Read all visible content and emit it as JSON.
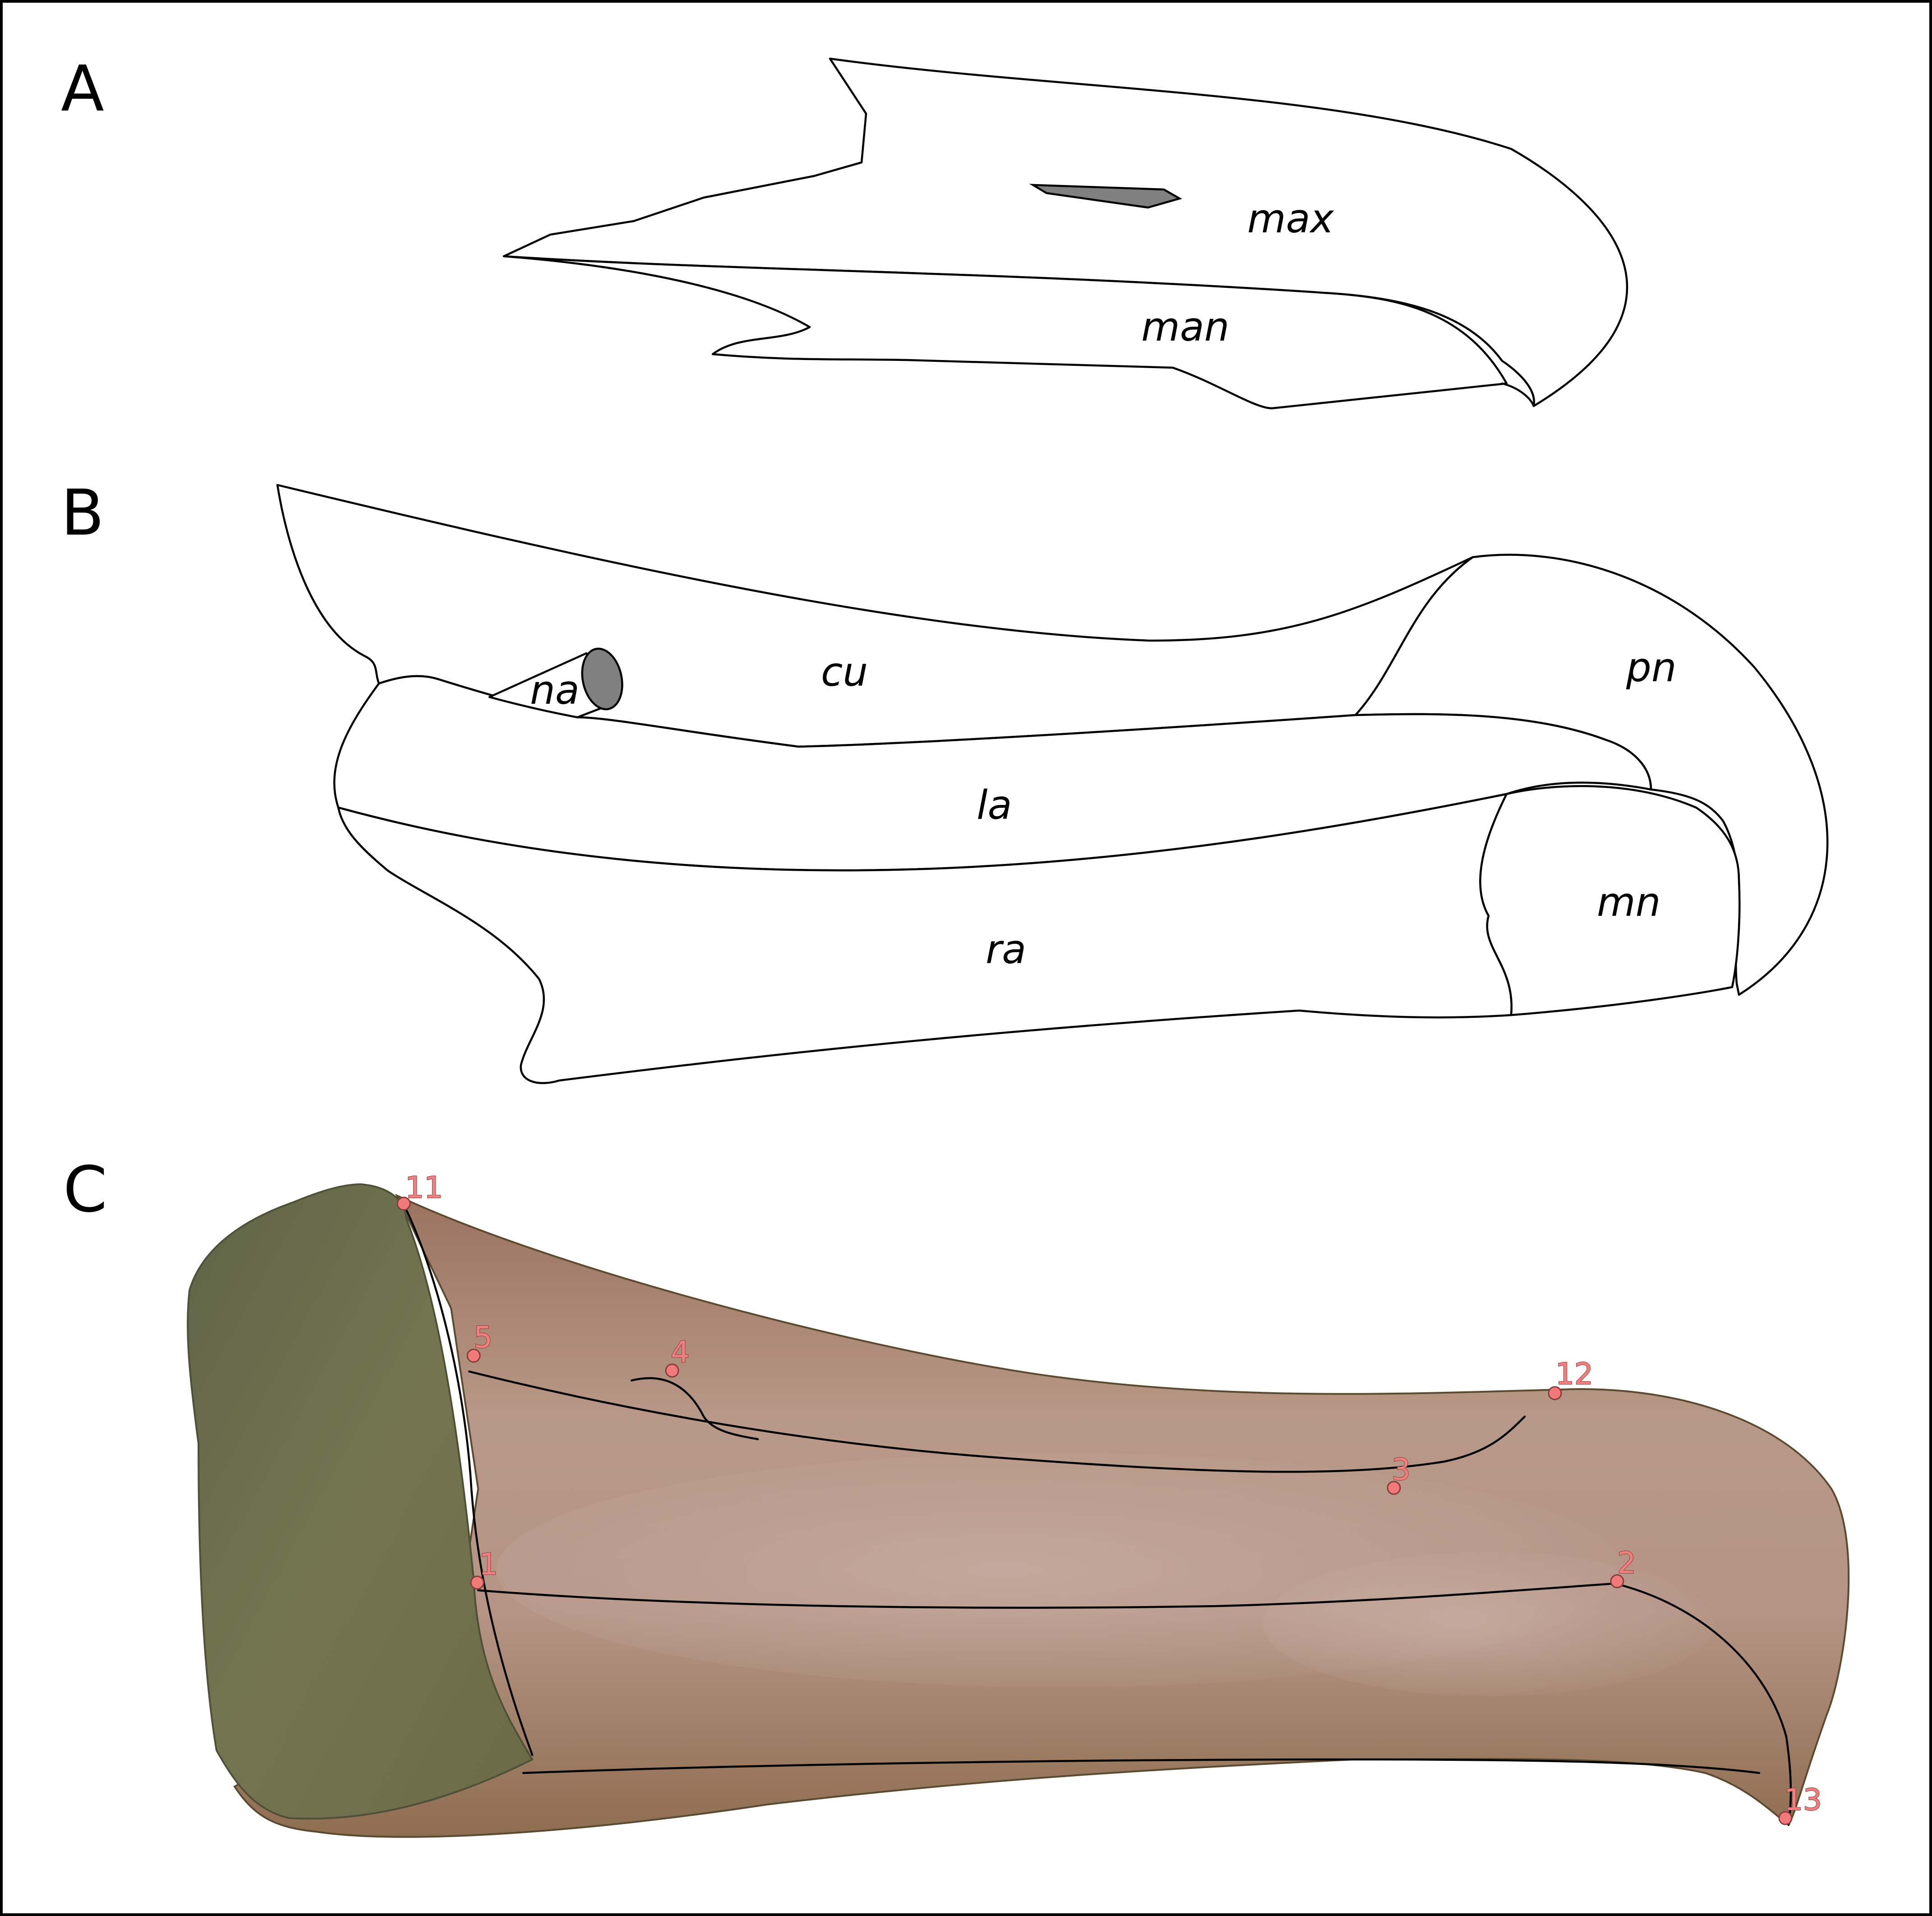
{
  "panels": {
    "A": {
      "letter": "A",
      "labels": {
        "max": "max",
        "man": "man"
      }
    },
    "B": {
      "letter": "B",
      "labels": {
        "cu": "cu",
        "na": "na",
        "pn": "pn",
        "la": "la",
        "mn": "mn",
        "ra": "ra"
      }
    },
    "C": {
      "letter": "C",
      "landmarks": [
        "1",
        "2",
        "3",
        "4",
        "5",
        "11",
        "12",
        "13"
      ]
    }
  },
  "colors": {
    "outline": "#000000",
    "nostril_fill": "#808080",
    "landmark": "#f07a7a",
    "model_head": "#6e7050",
    "model_body": "#a8836e",
    "frame": "#000000"
  }
}
